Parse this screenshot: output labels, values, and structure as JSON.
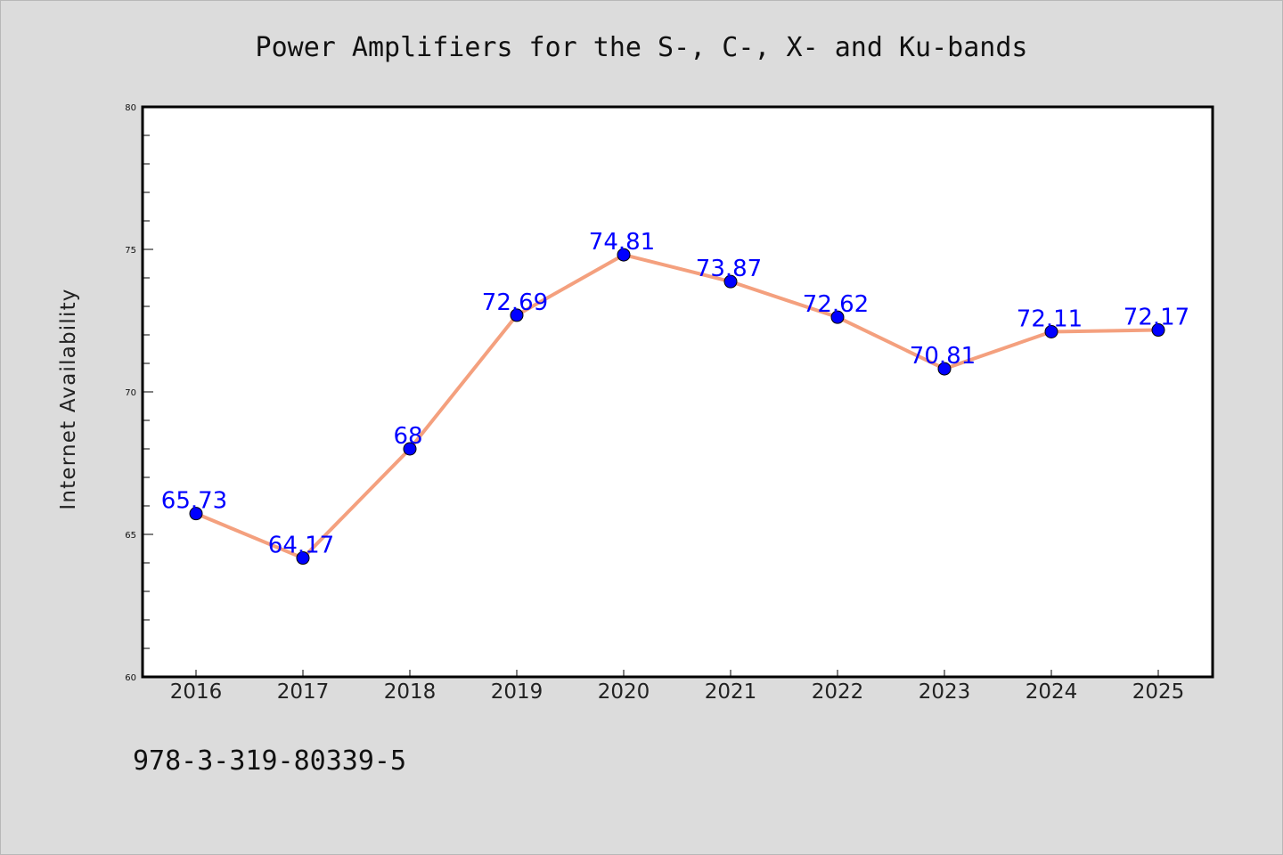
{
  "chart_data": {
    "type": "line",
    "title": "Power Amplifiers for the S-, C-, X- and Ku-bands",
    "xlabel": "",
    "ylabel": "Internet Availability",
    "categories": [
      "2016",
      "2017",
      "2018",
      "2019",
      "2020",
      "2021",
      "2022",
      "2023",
      "2024",
      "2025"
    ],
    "values": [
      65.73,
      64.17,
      68,
      72.69,
      74.81,
      73.87,
      72.62,
      70.81,
      72.11,
      72.17
    ],
    "data_labels": [
      "65.73",
      "64.17",
      "68",
      "72.69",
      "74.81",
      "73.87",
      "72.62",
      "70.81",
      "72.11",
      "72.17"
    ],
    "ylim": [
      60,
      80
    ],
    "yticks": [
      "60",
      "65",
      "70",
      "75",
      "80"
    ],
    "grid": false,
    "line_color": "#f4a07e",
    "marker_color": "#0000ff",
    "label_color": "#0000ff"
  },
  "footer_text": "978-3-319-80339-5"
}
